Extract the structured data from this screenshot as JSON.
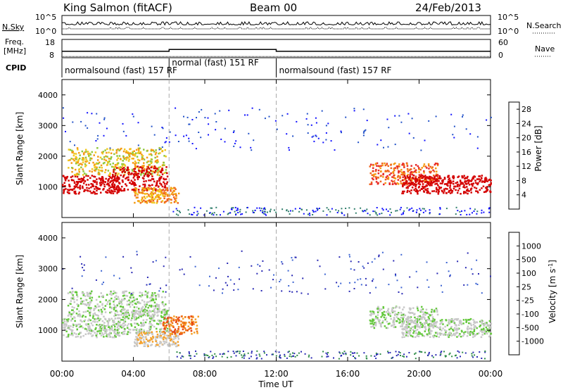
{
  "header": {
    "station": "King Salmon (fitACF)",
    "beam": "Beam 00",
    "date": "24/Feb/2013"
  },
  "chart_data": [
    {
      "type": "line",
      "id": "nsky-nsearch",
      "left_labels": [
        "N.Sky"
      ],
      "right_labels": [
        "N.Search"
      ],
      "left_ticks": [
        "10^5",
        "10^0"
      ],
      "right_ticks": [
        "10^5",
        "10^0"
      ],
      "y_scale": "log",
      "note_series": [
        {
          "name": "N.Sky"
        },
        {
          "name": "N.Search",
          "style": "dotted"
        }
      ]
    },
    {
      "type": "line",
      "id": "freq-nave",
      "left_labels": [
        "Freq.",
        "[MHz]"
      ],
      "right_labels": [
        "Nave"
      ],
      "left_ticks": [
        "18",
        "8"
      ],
      "right_ticks": [
        "60",
        "0"
      ],
      "series": [
        {
          "name": "Freq.",
          "x": [
            0,
            6.0,
            6.0,
            12.0,
            12.0,
            24
          ],
          "y": [
            11.5,
            11.5,
            12.5,
            12.5,
            11.5,
            11.5
          ]
        },
        {
          "name": "Nave",
          "style": "dotted",
          "x": [
            0,
            24
          ],
          "y": [
            4,
            4
          ]
        }
      ]
    },
    {
      "type": "table",
      "id": "cpid",
      "label": "CPID",
      "segments": [
        {
          "start": 0.0,
          "end": 6.0,
          "label": "normalsound (fast) 157 RF"
        },
        {
          "start": 6.0,
          "end": 12.0,
          "label": "normal (fast) 151 RF"
        },
        {
          "start": 12.0,
          "end": 24.0,
          "label": "normalsound (fast) 157 RF"
        }
      ]
    },
    {
      "type": "heatmap",
      "id": "power",
      "ylabel": "Slant Range [km]",
      "ylim": [
        0,
        4500
      ],
      "yticks": [
        1000,
        2000,
        3000,
        4000
      ],
      "xlim": [
        0,
        24
      ],
      "colorbar": {
        "label": "Power [dB]",
        "ticks": [
          4,
          8,
          12,
          16,
          20,
          24,
          28
        ],
        "range": [
          0,
          30
        ],
        "colors": [
          "#1010ff",
          "#2050c8",
          "#2e7d6a",
          "#3c9a55",
          "#8fc83c",
          "#f0c81e",
          "#f59a14",
          "#f0641e",
          "#e82828",
          "#d40000"
        ]
      },
      "echo_regions": [
        {
          "t0": 0.0,
          "t1": 3.2,
          "r0": 800,
          "r1": 1400,
          "level": 12
        },
        {
          "t0": 0.3,
          "t1": 5.8,
          "r0": 1400,
          "r1": 2300,
          "level": 5
        },
        {
          "t0": 2.8,
          "t1": 5.9,
          "r0": 900,
          "r1": 1700,
          "level": 10
        },
        {
          "t0": 4.0,
          "t1": 6.5,
          "r0": 500,
          "r1": 1000,
          "level": 6
        },
        {
          "t0": 17.2,
          "t1": 21.0,
          "r0": 1100,
          "r1": 1800,
          "level": 7
        },
        {
          "t0": 19.0,
          "t1": 24.0,
          "r0": 800,
          "r1": 1400,
          "level": 10
        }
      ]
    },
    {
      "type": "heatmap",
      "id": "velocity",
      "ylabel": "Slant Range [km]",
      "ylim": [
        0,
        4500
      ],
      "yticks": [
        1000,
        2000,
        3000,
        4000
      ],
      "xlim": [
        0,
        24
      ],
      "xticks": [
        "00:00",
        "04:00",
        "08:00",
        "12:00",
        "16:00",
        "20:00",
        "00:00"
      ],
      "xlabel": "Time UT",
      "colorbar": {
        "label_parts": [
          "Velocity [m s",
          "-1",
          "]"
        ],
        "ticks": [
          "1000",
          "500",
          "100",
          "25",
          "-25",
          "-100",
          "-500",
          "-1000"
        ],
        "colors": [
          "#2828b4",
          "#3c64d2",
          "#2e8c46",
          "#64c83c",
          "#c8c8c8",
          "#c8c8c8",
          "#f5a028",
          "#f07814",
          "#e84614",
          "#d40000"
        ]
      },
      "echo_regions": [
        {
          "t0": 0.0,
          "t1": 3.2,
          "r0": 800,
          "r1": 1400,
          "level": 4
        },
        {
          "t0": 0.3,
          "t1": 5.8,
          "r0": 1400,
          "r1": 2300,
          "level": 4
        },
        {
          "t0": 2.8,
          "t1": 5.9,
          "r0": 900,
          "r1": 1700,
          "level": 4
        },
        {
          "t0": 4.0,
          "t1": 6.5,
          "r0": 500,
          "r1": 1000,
          "level": 5
        },
        {
          "t0": 5.6,
          "t1": 7.6,
          "r0": 900,
          "r1": 1500,
          "level": 7
        },
        {
          "t0": 17.2,
          "t1": 21.0,
          "r0": 1100,
          "r1": 1800,
          "level": 4
        },
        {
          "t0": 19.0,
          "t1": 24.0,
          "r0": 800,
          "r1": 1400,
          "level": 4
        }
      ]
    }
  ]
}
